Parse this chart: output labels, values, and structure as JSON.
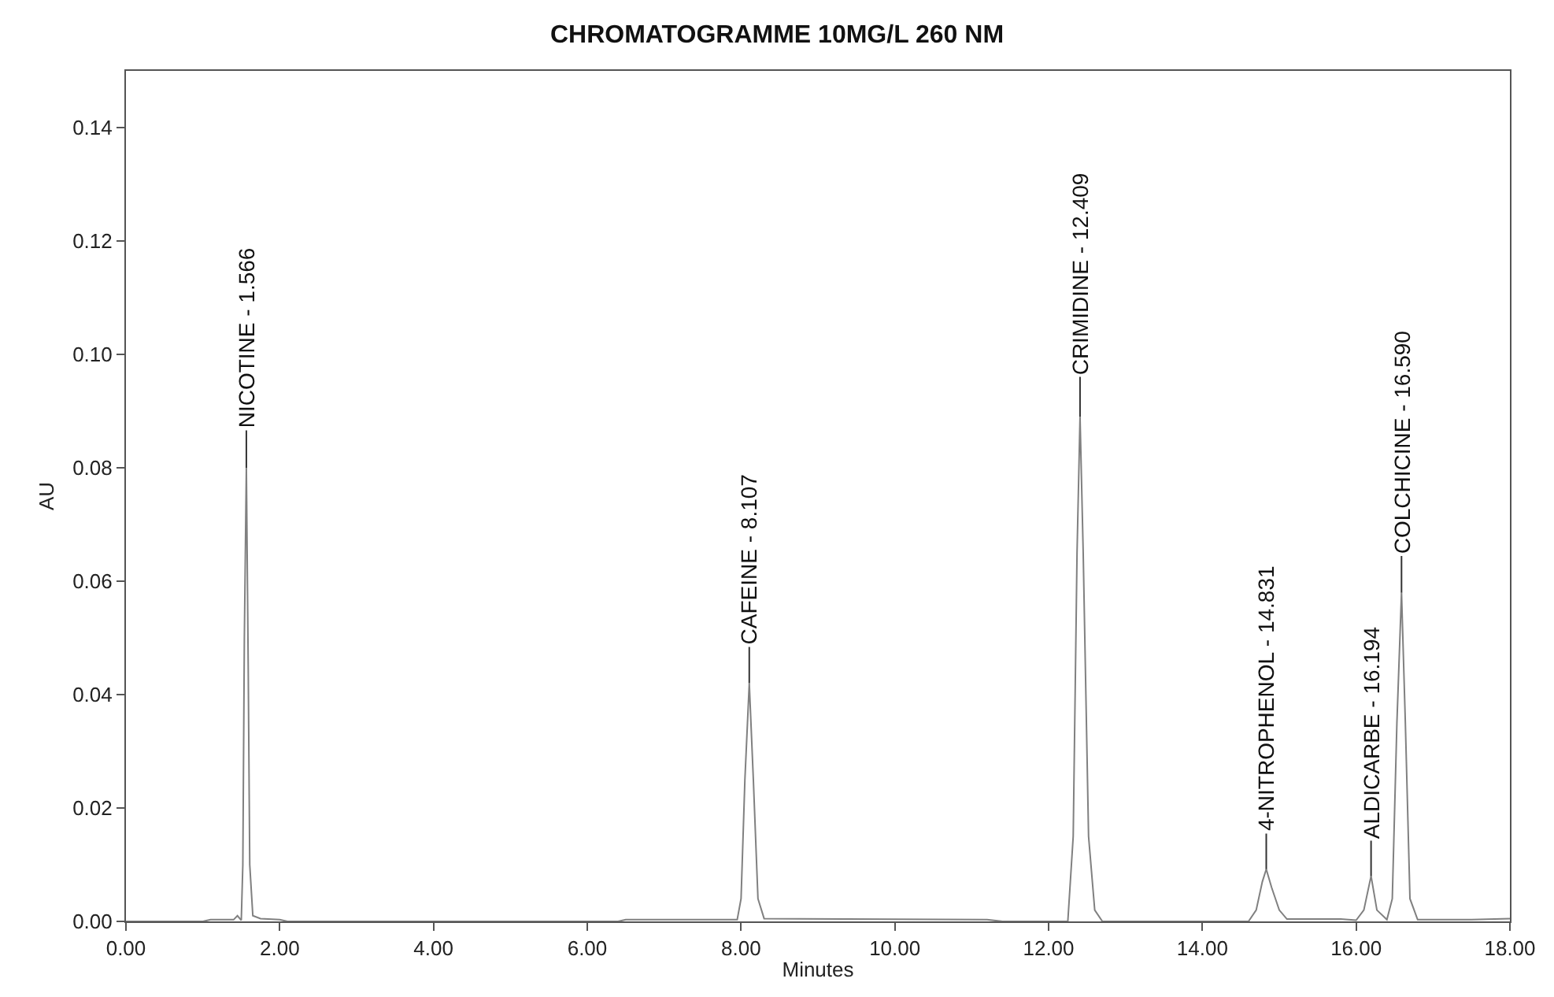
{
  "chart_data": {
    "type": "line",
    "title": "CHROMATOGRAMME 10MG/L 260 NM",
    "xlabel": "Minutes",
    "ylabel": "AU",
    "x": [
      0.0,
      1.0,
      1.1,
      1.4,
      1.45,
      1.5,
      1.52,
      1.54,
      1.566,
      1.59,
      1.61,
      1.65,
      1.75,
      2.0,
      2.1,
      6.4,
      6.5,
      7.95,
      8.0,
      8.05,
      8.107,
      8.16,
      8.22,
      8.3,
      11.2,
      11.4,
      12.25,
      12.32,
      12.37,
      12.409,
      12.45,
      12.52,
      12.6,
      12.7,
      14.6,
      14.7,
      14.78,
      14.831,
      14.9,
      15.0,
      15.1,
      15.8,
      16.0,
      16.1,
      16.194,
      16.27,
      16.4,
      16.47,
      16.53,
      16.59,
      16.64,
      16.7,
      16.8,
      17.5,
      18.0
    ],
    "series": [
      {
        "color": "#808080",
        "values": [
          0,
          0,
          0.0003,
          0.0003,
          0.001,
          0.0002,
          0.01,
          0.05,
          0.08,
          0.045,
          0.01,
          0.001,
          0.0005,
          0.0003,
          0,
          0,
          0.0003,
          0.0003,
          0.004,
          0.025,
          0.042,
          0.025,
          0.004,
          0.0005,
          0.0003,
          0,
          0,
          0.015,
          0.065,
          0.089,
          0.065,
          0.015,
          0.002,
          0,
          0,
          0.002,
          0.007,
          0.0092,
          0.006,
          0.002,
          0.0004,
          0.0004,
          0.0002,
          0.002,
          0.008,
          0.002,
          0.0003,
          0.004,
          0.035,
          0.058,
          0.035,
          0.004,
          0.0003,
          0.0003,
          0.0005
        ]
      }
    ],
    "xlim": [
      0,
      18
    ],
    "ylim": [
      0,
      0.15
    ],
    "xticks": [
      {
        "value": 0,
        "label": "0.00"
      },
      {
        "value": 2,
        "label": "2.00"
      },
      {
        "value": 4,
        "label": "4.00"
      },
      {
        "value": 6,
        "label": "6.00"
      },
      {
        "value": 8,
        "label": "8.00"
      },
      {
        "value": 10,
        "label": "10.00"
      },
      {
        "value": 12,
        "label": "12.00"
      },
      {
        "value": 14,
        "label": "14.00"
      },
      {
        "value": 16,
        "label": "16.00"
      },
      {
        "value": 18,
        "label": "18.00"
      }
    ],
    "yticks": [
      {
        "value": 0,
        "label": "0.00"
      },
      {
        "value": 0.02,
        "label": "0.02"
      },
      {
        "value": 0.04,
        "label": "0.04"
      },
      {
        "value": 0.06,
        "label": "0.06"
      },
      {
        "value": 0.08,
        "label": "0.08"
      },
      {
        "value": 0.1,
        "label": "0.10"
      },
      {
        "value": 0.12,
        "label": "0.12"
      },
      {
        "value": 0.14,
        "label": "0.14"
      }
    ],
    "annotations": [
      {
        "text": "NICOTINE - 1.566",
        "x": 1.566,
        "y": 0.08
      },
      {
        "text": "CAFEINE - 8.107",
        "x": 8.107,
        "y": 0.042
      },
      {
        "text": "CRIMIDINE - 12.409",
        "x": 12.409,
        "y": 0.089
      },
      {
        "text": "4-NITROPHENOL - 14.831",
        "x": 14.831,
        "y": 0.0092
      },
      {
        "text": "ALDICARBE - 16.194",
        "x": 16.194,
        "y": 0.008
      },
      {
        "text": "COLCHICINE - 16.590",
        "x": 16.59,
        "y": 0.058
      }
    ],
    "marker": "none",
    "line_style": "solid"
  }
}
